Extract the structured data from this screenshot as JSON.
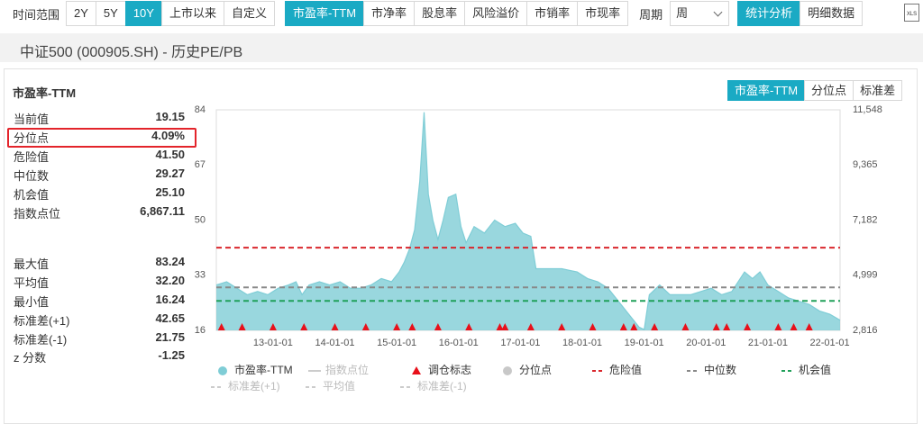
{
  "toolbar": {
    "range_label": "时间范围",
    "ranges": [
      "2Y",
      "5Y",
      "10Y",
      "上市以来",
      "自定义"
    ],
    "active_range": 2,
    "metrics": [
      "市盈率-TTM",
      "市净率",
      "股息率",
      "风险溢价",
      "市销率",
      "市现率"
    ],
    "active_metric": 0,
    "period_label": "周期",
    "period": "周",
    "views": [
      "统计分析",
      "明细数据"
    ],
    "active_view": 0,
    "export": "XLS"
  },
  "header": {
    "title": "中证500 (000905.SH) - 历史PE/PB"
  },
  "panel": {
    "title": "市盈率-TTM",
    "tabs": [
      "市盈率-TTM",
      "分位点",
      "标准差"
    ],
    "active_tab": 0
  },
  "stats": [
    [
      {
        "label": "当前值",
        "value": "19.15"
      },
      {
        "label": "分位点",
        "value": "4.09%"
      },
      {
        "label": "危险值",
        "value": "41.50"
      },
      {
        "label": "中位数",
        "value": "29.27"
      },
      {
        "label": "机会值",
        "value": "25.10"
      },
      {
        "label": "指数点位",
        "value": "6,867.11"
      }
    ],
    [
      {
        "label": "最大值",
        "value": "83.24"
      },
      {
        "label": "平均值",
        "value": "32.20"
      },
      {
        "label": "最小值",
        "value": "16.24"
      },
      {
        "label": "标准差(+1)",
        "value": "42.65"
      },
      {
        "label": "标准差(-1)",
        "value": "21.75"
      },
      {
        "label": "z 分数",
        "value": "-1.25"
      }
    ]
  ],
  "chart_data": {
    "type": "area",
    "x": [
      "12-02-01",
      "12-04-01",
      "12-06-01",
      "12-08-01",
      "12-10-01",
      "12-12-01",
      "13-02-01",
      "13-04-01",
      "13-05-15",
      "13-06-20",
      "13-08-01",
      "13-10-01",
      "13-12-01",
      "14-02-01",
      "14-04-01",
      "14-06-01",
      "14-08-01",
      "14-10-01",
      "14-12-01",
      "15-01-15",
      "15-02-15",
      "15-03-15",
      "15-04-15",
      "15-05-15",
      "15-06-10",
      "15-07-05",
      "15-08-01",
      "15-09-01",
      "15-10-01",
      "15-11-01",
      "15-12-15",
      "16-01-15",
      "16-02-15",
      "16-04-01",
      "16-06-01",
      "16-08-01",
      "16-10-01",
      "16-12-01",
      "17-01-15",
      "17-03-01",
      "17-04-01",
      "17-06-01",
      "17-09-01",
      "17-12-01",
      "18-02-01",
      "18-04-01",
      "18-06-01",
      "18-08-01",
      "18-10-01",
      "18-12-01",
      "19-01-01",
      "19-02-01",
      "19-04-01",
      "19-06-01",
      "19-08-01",
      "19-10-01",
      "19-12-01",
      "20-02-01",
      "20-04-01",
      "20-06-01",
      "20-08-15",
      "20-10-01",
      "20-11-15",
      "21-01-01",
      "21-03-01",
      "21-05-01",
      "21-07-01",
      "21-09-01",
      "21-11-01",
      "22-01-01",
      "22-03-01"
    ],
    "series": [
      {
        "name": "市盈率-TTM",
        "color": "#7fcdd6",
        "values": [
          30,
          31,
          29,
          27,
          28,
          27,
          29,
          30,
          31,
          27,
          30,
          31,
          30,
          31,
          29,
          29,
          30,
          32,
          31,
          34,
          37,
          41,
          47,
          62,
          83.24,
          58,
          50,
          44,
          50,
          57,
          58,
          48,
          43,
          48,
          46,
          50,
          48,
          49,
          46,
          45,
          35,
          35,
          35,
          34,
          32,
          31,
          29,
          25,
          21,
          17,
          16.24,
          27,
          30,
          27,
          27,
          27,
          28,
          29,
          27,
          28,
          34,
          32,
          34,
          30,
          28,
          26,
          25,
          24,
          22,
          21,
          19.15
        ]
      }
    ],
    "markers": {
      "name": "调仓标志",
      "color": "#e8101a",
      "x": [
        "12-03-01",
        "12-07-01",
        "13-01-01",
        "13-07-01",
        "14-01-01",
        "14-07-01",
        "15-01-01",
        "15-04-01",
        "15-09-01",
        "16-03-01",
        "16-09-01",
        "16-10-01",
        "17-03-01",
        "17-09-01",
        "18-03-01",
        "18-09-01",
        "18-11-01",
        "19-03-01",
        "19-09-01",
        "20-03-01",
        "20-05-01",
        "20-09-01",
        "21-03-01",
        "21-06-01",
        "21-09-01"
      ]
    },
    "reference_lines": [
      {
        "name": "危险值",
        "value": 41.5,
        "color": "#d9262c"
      },
      {
        "name": "中位数",
        "value": 29.27,
        "color": "#888888"
      },
      {
        "name": "机会值",
        "value": 25.1,
        "color": "#21a05a"
      }
    ],
    "xlim": [
      "12-02-01",
      "22-03-01"
    ],
    "xticks": [
      "13-01-01",
      "14-01-01",
      "15-01-01",
      "16-01-01",
      "17-01-01",
      "18-01-01",
      "19-01-01",
      "20-01-01",
      "21-01-01",
      "22-01-01"
    ],
    "ylim": [
      16,
      84
    ],
    "yticks": [
      16,
      33,
      50,
      67,
      84
    ],
    "y2lim": [
      2816,
      11548
    ],
    "y2ticks": [
      {
        "value": 2816,
        "label": "2,816"
      },
      {
        "value": 4999,
        "label": "4,999"
      },
      {
        "value": 7182,
        "label": "7,182"
      },
      {
        "value": 9365,
        "label": "9,365"
      },
      {
        "value": 11548,
        "label": "11,548"
      }
    ],
    "grid": false,
    "legend": [
      {
        "name": "市盈率-TTM",
        "color": "#7fcdd6",
        "symbol": "circle",
        "active": true
      },
      {
        "name": "指数点位",
        "color": "#cccccc",
        "symbol": "line",
        "active": false
      },
      {
        "name": "调仓标志",
        "color": "#e8101a",
        "symbol": "triangle",
        "active": true
      },
      {
        "name": "分位点",
        "color": "#c8c8c8",
        "symbol": "circle",
        "active": true
      },
      {
        "name": "危险值",
        "color": "#d9262c",
        "symbol": "dashed",
        "active": true
      },
      {
        "name": "中位数",
        "color": "#888888",
        "symbol": "dashed",
        "active": true
      },
      {
        "name": "机会值",
        "color": "#21a05a",
        "symbol": "dashed",
        "active": true
      },
      {
        "name": "标准差(+1)",
        "color": "#cccccc",
        "symbol": "dashed",
        "active": false
      },
      {
        "name": "平均值",
        "color": "#cccccc",
        "symbol": "dashed",
        "active": false
      },
      {
        "name": "标准差(-1)",
        "color": "#cccccc",
        "symbol": "dashed",
        "active": false
      }
    ]
  }
}
